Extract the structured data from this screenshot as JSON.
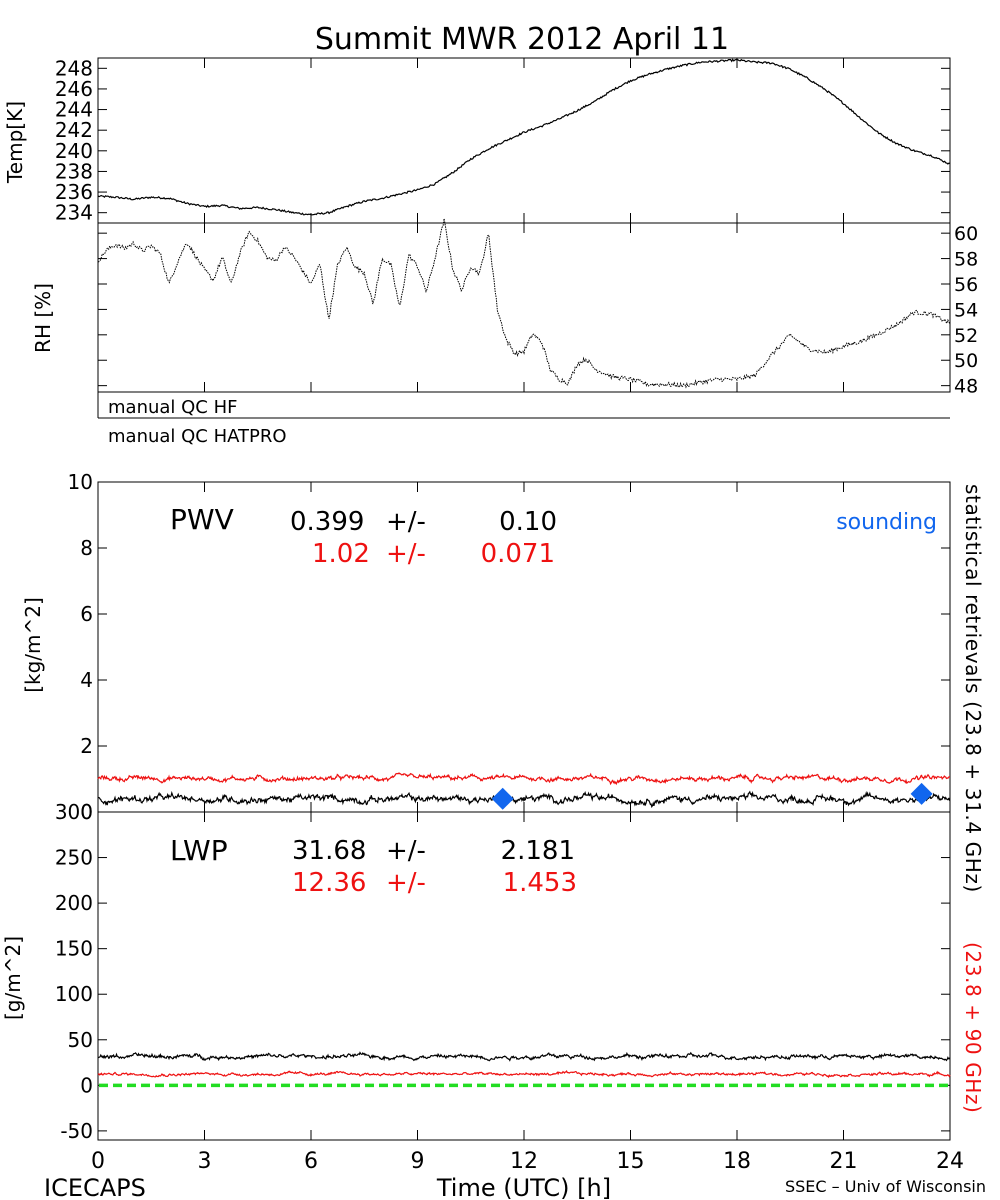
{
  "title": "Summit MWR 2012 April 11",
  "footer": {
    "left": "ICECAPS",
    "right": "SSEC – Univ of Wisconsin",
    "xlabel": "Time (UTC) [h]"
  },
  "colors": {
    "black": "#000000",
    "red": "#ee1111",
    "blue": "#1166ee",
    "green": "#22dd22"
  },
  "chart_data": [
    {
      "type": "line",
      "name": "temperature",
      "ylabel": "Temp[K]",
      "xlim": [
        0,
        24
      ],
      "ylim": [
        233,
        249
      ],
      "yticks": [
        234,
        236,
        238,
        240,
        242,
        244,
        246,
        248
      ],
      "series": [
        {
          "color": "#000000",
          "x": [
            0,
            0.5,
            1,
            1.5,
            2,
            2.5,
            3,
            3.5,
            4,
            4.5,
            5,
            5.5,
            6,
            6.5,
            7,
            7.5,
            8,
            8.5,
            9,
            9.5,
            10,
            10.5,
            11,
            11.5,
            12,
            12.5,
            13,
            13.5,
            14,
            14.5,
            15,
            15.5,
            16,
            16.5,
            17,
            17.5,
            18,
            18.5,
            19,
            19.5,
            20,
            20.5,
            21,
            21.5,
            22,
            22.5,
            23,
            23.5,
            24
          ],
          "y": [
            235.6,
            235.5,
            235.3,
            235.5,
            235.4,
            234.9,
            234.6,
            234.7,
            234.4,
            234.5,
            234.3,
            234.0,
            233.8,
            234.0,
            234.6,
            235.1,
            235.4,
            235.8,
            236.2,
            236.8,
            237.9,
            239.2,
            240.2,
            241.0,
            241.8,
            242.4,
            243.1,
            243.9,
            244.8,
            245.9,
            246.8,
            247.4,
            247.9,
            248.3,
            248.6,
            248.7,
            248.8,
            248.6,
            248.5,
            247.9,
            247.0,
            245.9,
            244.6,
            243.1,
            241.7,
            240.7,
            240.0,
            239.5,
            238.7
          ]
        }
      ]
    },
    {
      "type": "line",
      "name": "relative-humidity",
      "ylabel": "RH [%]",
      "xlim": [
        0,
        24
      ],
      "ylim": [
        47.5,
        60.8
      ],
      "yticks": [
        48,
        50,
        52,
        54,
        56,
        58,
        60
      ],
      "series": [
        {
          "color": "#000000",
          "x": [
            0,
            0.25,
            0.5,
            0.75,
            1,
            1.25,
            1.5,
            1.75,
            2,
            2.25,
            2.5,
            2.75,
            3,
            3.25,
            3.5,
            3.75,
            4,
            4.25,
            4.5,
            4.75,
            5,
            5.25,
            5.5,
            5.75,
            6,
            6.25,
            6.5,
            6.75,
            7,
            7.25,
            7.5,
            7.75,
            8,
            8.25,
            8.5,
            8.75,
            9,
            9.25,
            9.5,
            9.75,
            10,
            10.25,
            10.5,
            10.75,
            11,
            11.25,
            11.5,
            11.75,
            12,
            12.25,
            12.5,
            12.75,
            13,
            13.25,
            13.5,
            13.75,
            14,
            14.5,
            15,
            15.5,
            16,
            16.5,
            17,
            17.5,
            18,
            18.5,
            19,
            19.5,
            20,
            20.5,
            21,
            21.5,
            22,
            22.5,
            23,
            23.5,
            24
          ],
          "y": [
            57.8,
            58.7,
            59.1,
            58.8,
            59.2,
            58.6,
            59.0,
            58.4,
            56.0,
            57.8,
            59.3,
            58.2,
            57.1,
            56.3,
            58.1,
            56.0,
            58.4,
            60.1,
            59.4,
            58.1,
            57.8,
            58.9,
            58.2,
            57.1,
            56.0,
            57.6,
            53.2,
            57.5,
            58.9,
            57.3,
            56.9,
            54.4,
            58.0,
            57.5,
            54.1,
            58.3,
            57.4,
            55.4,
            58.1,
            61.0,
            57.1,
            55.5,
            57.4,
            56.8,
            60.0,
            54.0,
            51.6,
            50.5,
            50.7,
            52.1,
            51.4,
            49.2,
            48.5,
            48.2,
            49.7,
            50.1,
            49.3,
            48.7,
            48.5,
            48.1,
            48.1,
            48.0,
            48.3,
            48.5,
            48.5,
            48.8,
            50.5,
            52.0,
            50.9,
            50.6,
            51.1,
            51.5,
            52.1,
            52.8,
            53.8,
            53.6,
            52.9
          ]
        }
      ]
    },
    {
      "type": "line",
      "name": "pwv",
      "label": "PWV",
      "ylabel": "[kg/m^2]",
      "xlim": [
        0,
        24
      ],
      "ylim": [
        0,
        10
      ],
      "yticks": [
        0,
        2,
        4,
        6,
        8,
        10
      ],
      "stats": [
        {
          "mean": "0.399",
          "pm": "+/-",
          "std": "0.10",
          "color": "#000000"
        },
        {
          "mean": "1.02",
          "pm": "+/-",
          "std": "0.071",
          "color": "#ee1111"
        }
      ],
      "series": [
        {
          "color": "#000000",
          "x": [
            0,
            24
          ],
          "mean": 0.399,
          "std": 0.1
        },
        {
          "color": "#ee1111",
          "x": [
            0,
            24
          ],
          "mean": 1.02,
          "std": 0.071
        }
      ],
      "sounding": {
        "label": "sounding",
        "color": "#1166ee",
        "x": [
          11.4,
          23.2
        ],
        "y": [
          0.4,
          0.55
        ]
      }
    },
    {
      "type": "line",
      "name": "lwp",
      "label": "LWP",
      "ylabel": "[g/m^2]",
      "xlabel": "Time (UTC) [h]",
      "xlim": [
        0,
        24
      ],
      "xticks": [
        0,
        3,
        6,
        9,
        12,
        15,
        18,
        21,
        24
      ],
      "ylim": [
        -60,
        300
      ],
      "yticks": [
        -50,
        0,
        50,
        100,
        150,
        200,
        250,
        300
      ],
      "stats": [
        {
          "mean": "31.68",
          "pm": "+/-",
          "std": "2.181",
          "color": "#000000"
        },
        {
          "mean": "12.36",
          "pm": "+/-",
          "std": "1.453",
          "color": "#ee1111"
        }
      ],
      "series": [
        {
          "color": "#000000",
          "x": [
            0,
            24
          ],
          "mean": 31.68,
          "std": 2.181
        },
        {
          "color": "#ee1111",
          "x": [
            0,
            24
          ],
          "mean": 12.36,
          "std": 1.453
        }
      ],
      "zero_line": {
        "y": 0,
        "color": "#22dd22"
      }
    }
  ],
  "qc": {
    "hf_label": "manual QC HF",
    "hatpro_label": "manual QC HATPRO"
  },
  "side_labels": {
    "black": "statistical retrievals (23.8 + 31.4 GHz)",
    "red": "(23.8 + 90 GHz)"
  }
}
